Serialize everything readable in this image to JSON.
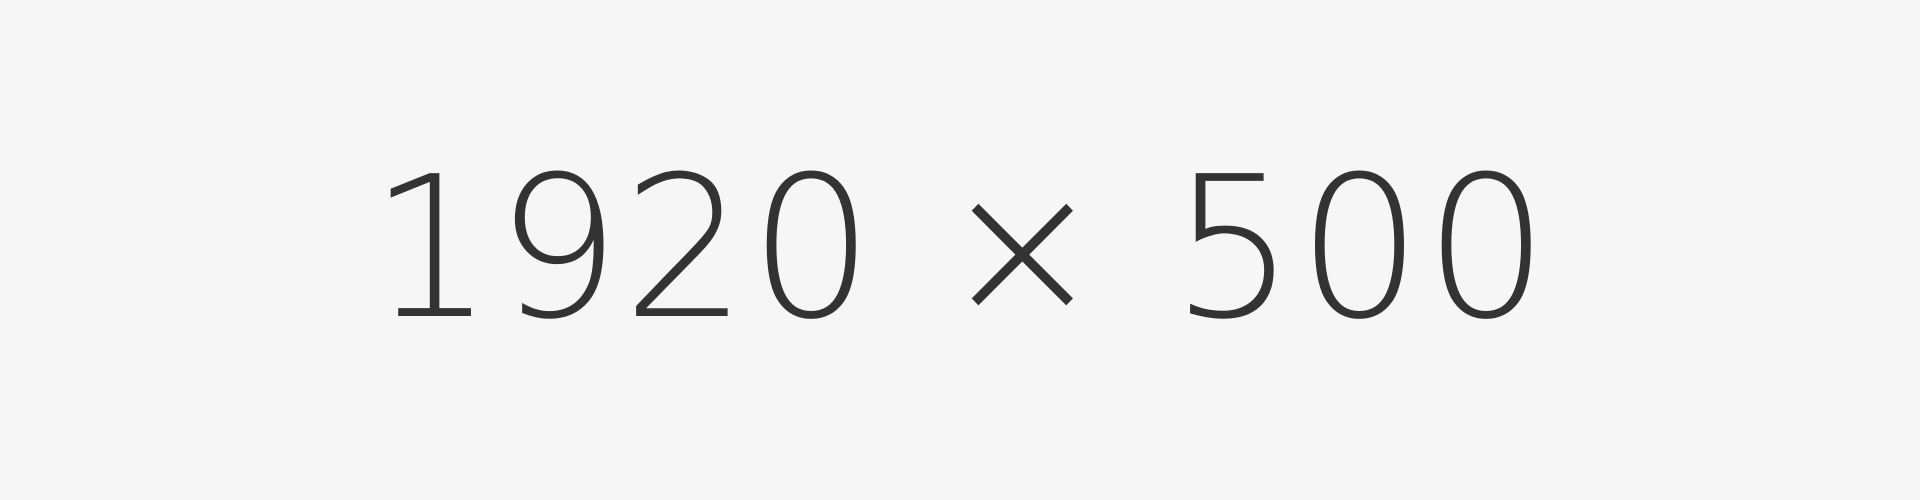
{
  "placeholder": {
    "label": "1920 × 500",
    "background_color": "#f6f6f6",
    "text_color": "#333333"
  }
}
